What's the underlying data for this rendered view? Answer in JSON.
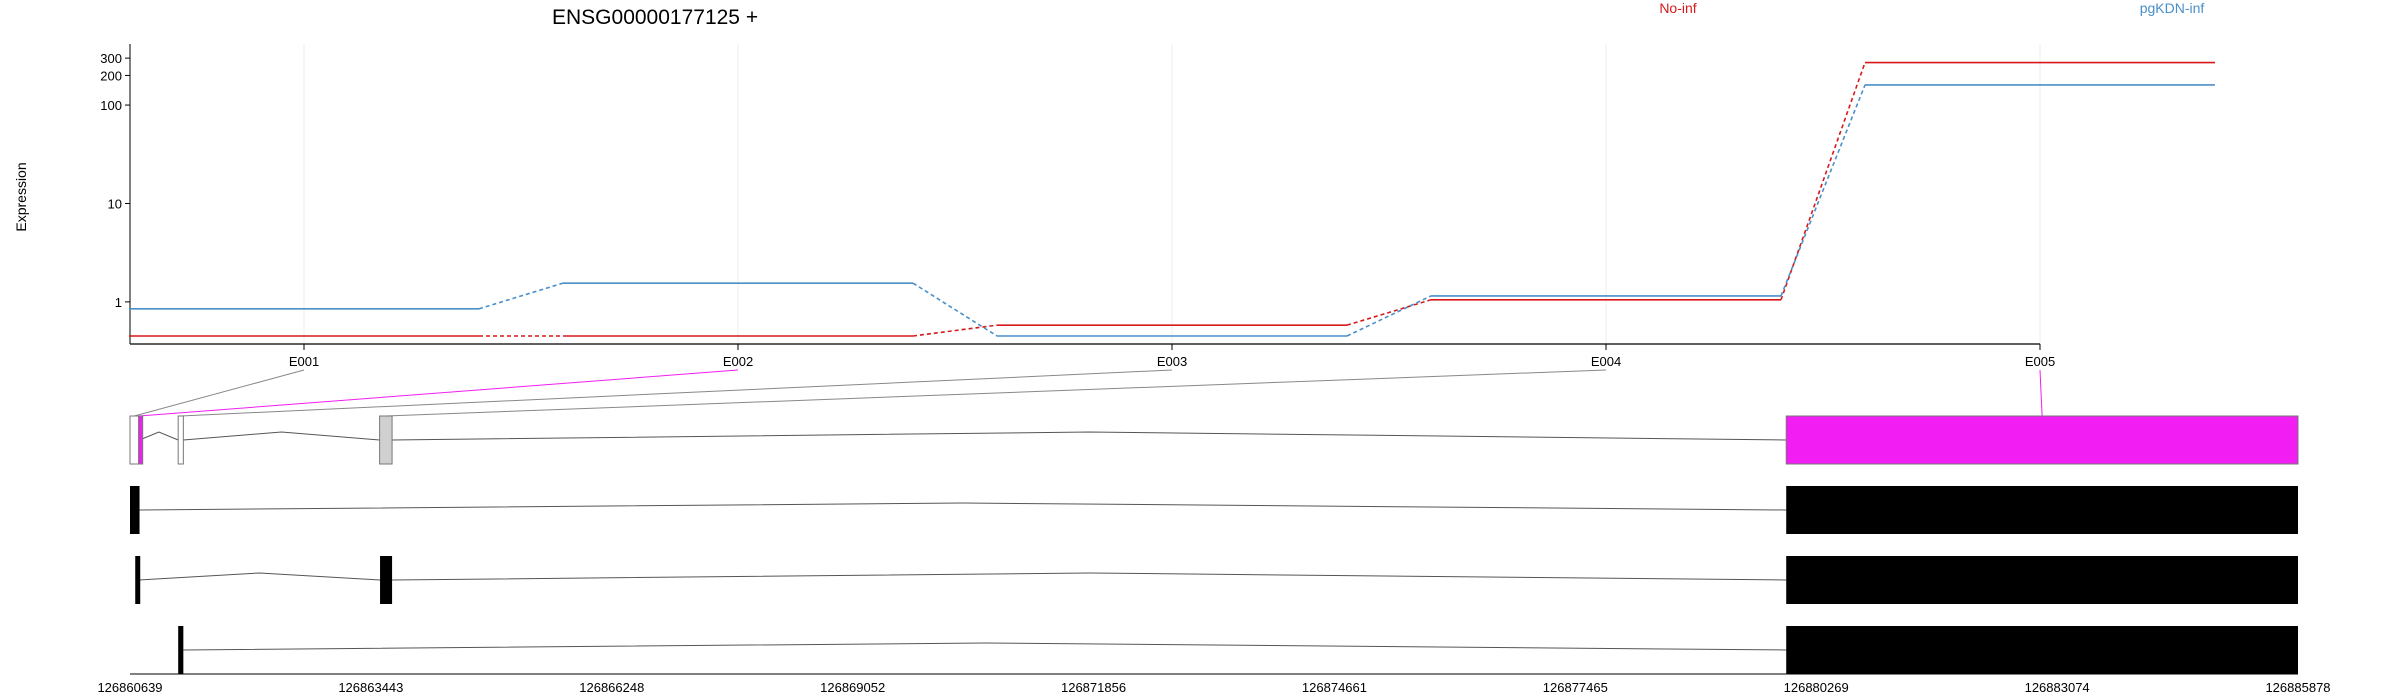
{
  "chart_data": {
    "type": "line",
    "title": "ENSG00000177125 +",
    "ylabel": "Expression",
    "yscale": "log",
    "ylim": [
      0.45,
      380
    ],
    "y_ticks": [
      "300",
      "200",
      "100",
      "10",
      "1"
    ],
    "y_tick_values": [
      300,
      200,
      100,
      10,
      1
    ],
    "categories": [
      "E001",
      "E002",
      "E003",
      "E004",
      "E005"
    ],
    "series": [
      {
        "name": "No-inf",
        "color": "#d7191c",
        "values": [
          0.45,
          0.45,
          0.58,
          1.05,
          270
        ]
      },
      {
        "name": "pgKDN-inf",
        "color": "#4a8fc9",
        "values": [
          0.85,
          1.55,
          0.45,
          1.15,
          160
        ]
      }
    ],
    "legend": {
      "position": "top",
      "entries": [
        "No-inf",
        "pgKDN-inf"
      ]
    },
    "highlight_color": "#f21df2",
    "genomic_axis": {
      "ticks": [
        "126860639",
        "126863443",
        "126866248",
        "126869052",
        "126871856",
        "126874661",
        "126877465",
        "126880269",
        "126883074",
        "126885878"
      ]
    },
    "gene_model": {
      "exons": [
        {
          "id": "E001",
          "start": 126860639,
          "end": 126860740
        },
        {
          "id": "E002",
          "start": 126860740,
          "end": 126860750
        },
        {
          "id": "E003",
          "start": 126861200,
          "end": 126861260
        },
        {
          "id": "E004",
          "start": 126863545,
          "end": 126863690
        },
        {
          "id": "E005",
          "start": 126879920,
          "end": 126885878
        }
      ],
      "transcripts": [
        {
          "exons": [
            [
              126860639,
              126860750
            ],
            [
              126879920,
              126885878
            ]
          ]
        },
        {
          "exons": [
            [
              126860700,
              126860740
            ],
            [
              126863550,
              126863690
            ],
            [
              126879920,
              126885878
            ]
          ]
        },
        {
          "exons": [
            [
              126861200,
              126861260
            ],
            [
              126879920,
              126885878
            ]
          ]
        }
      ]
    }
  }
}
